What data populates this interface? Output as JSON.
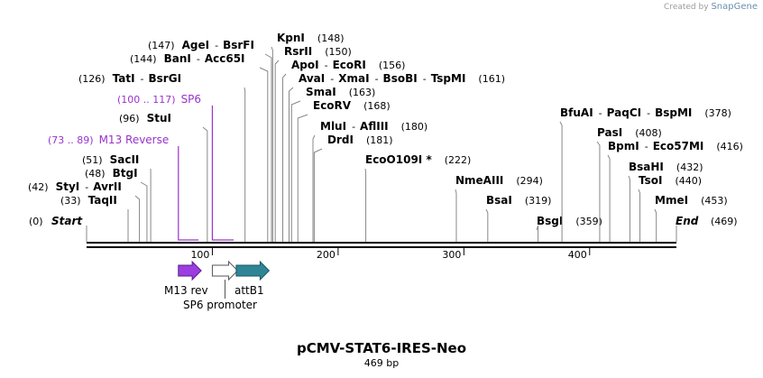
{
  "credit": {
    "prefix": "Created by",
    "brand": "SnapGene"
  },
  "plasmid": {
    "name": "pCMV-STAT6-IRES-Neo",
    "length_label": "469 bp",
    "length": 469
  },
  "colors": {
    "primer": "#9933cc",
    "m13": "#9b3de0",
    "attb1": "#2f8596",
    "line": "#888888",
    "axis": "#000000"
  },
  "ends": [
    {
      "id": "start",
      "pos": 0,
      "label": "Start",
      "num": "(0)"
    },
    {
      "id": "end",
      "pos": 469,
      "label": "End",
      "num": "(469)"
    }
  ],
  "sites": [
    {
      "id": "taqii",
      "pos": 33,
      "num": "(33)",
      "names": [
        "TaqII"
      ],
      "side": "left"
    },
    {
      "id": "styi",
      "pos": 42,
      "num": "(42)",
      "names": [
        "StyI",
        "AvrII"
      ],
      "side": "left"
    },
    {
      "id": "btgi",
      "pos": 48,
      "num": "(48)",
      "names": [
        "BtgI"
      ],
      "side": "left"
    },
    {
      "id": "sacii",
      "pos": 51,
      "num": "(51)",
      "names": [
        "SacII"
      ],
      "side": "left"
    },
    {
      "id": "stui",
      "pos": 96,
      "num": "(96)",
      "names": [
        "StuI"
      ],
      "side": "left"
    },
    {
      "id": "tati",
      "pos": 126,
      "num": "(126)",
      "names": [
        "TatI",
        "BsrGI"
      ],
      "side": "left"
    },
    {
      "id": "bani",
      "pos": 144,
      "num": "(144)",
      "names": [
        "BanI",
        "Acc65I"
      ],
      "side": "left"
    },
    {
      "id": "agei",
      "pos": 147,
      "num": "(147)",
      "names": [
        "AgeI",
        "BsrFI"
      ],
      "side": "left"
    },
    {
      "id": "kpni",
      "pos": 148,
      "num": "(148)",
      "names": [
        "KpnI"
      ],
      "side": "right"
    },
    {
      "id": "rsrii",
      "pos": 150,
      "num": "(150)",
      "names": [
        "RsrII"
      ],
      "side": "right"
    },
    {
      "id": "apoi",
      "pos": 156,
      "num": "(156)",
      "names": [
        "ApoI",
        "EcoRI"
      ],
      "side": "right"
    },
    {
      "id": "avai",
      "pos": 161,
      "num": "(161)",
      "names": [
        "AvaI",
        "XmaI",
        "BsoBI",
        "TspMI"
      ],
      "side": "right"
    },
    {
      "id": "smai",
      "pos": 163,
      "num": "(163)",
      "names": [
        "SmaI"
      ],
      "side": "right"
    },
    {
      "id": "ecorv",
      "pos": 168,
      "num": "(168)",
      "names": [
        "EcoRV"
      ],
      "side": "right"
    },
    {
      "id": "mlui",
      "pos": 180,
      "num": "(180)",
      "names": [
        "MluI",
        "AflIII"
      ],
      "side": "right"
    },
    {
      "id": "drdi",
      "pos": 181,
      "num": "(181)",
      "names": [
        "DrdI"
      ],
      "side": "right"
    },
    {
      "id": "eco0109i",
      "pos": 222,
      "num": "(222)",
      "names": [
        "EcoO109I *"
      ],
      "side": "right"
    },
    {
      "id": "nmeaiii",
      "pos": 294,
      "num": "(294)",
      "names": [
        "NmeAIII"
      ],
      "side": "right"
    },
    {
      "id": "bsai",
      "pos": 319,
      "num": "(319)",
      "names": [
        "BsaI"
      ],
      "side": "right"
    },
    {
      "id": "bsgi",
      "pos": 359,
      "num": "(359)",
      "names": [
        "BsgI"
      ],
      "side": "right"
    },
    {
      "id": "bfuai",
      "pos": 378,
      "num": "(378)",
      "names": [
        "BfuAI",
        "PaqCI",
        "BspMI"
      ],
      "side": "right"
    },
    {
      "id": "pasi",
      "pos": 408,
      "num": "(408)",
      "names": [
        "PasI"
      ],
      "side": "right"
    },
    {
      "id": "bpmi",
      "pos": 416,
      "num": "(416)",
      "names": [
        "BpmI",
        "Eco57MI"
      ],
      "side": "right"
    },
    {
      "id": "bsahi",
      "pos": 432,
      "num": "(432)",
      "names": [
        "BsaHI"
      ],
      "side": "right"
    },
    {
      "id": "tsoi",
      "pos": 440,
      "num": "(440)",
      "names": [
        "TsoI"
      ],
      "side": "right"
    },
    {
      "id": "mmei",
      "pos": 453,
      "num": "(453)",
      "names": [
        "MmeI"
      ],
      "side": "right"
    }
  ],
  "primers": [
    {
      "id": "m13-reverse",
      "start": 73,
      "end": 89,
      "range": "(73 .. 89)",
      "label": "M13 Reverse"
    },
    {
      "id": "sp6",
      "start": 100,
      "end": 117,
      "range": "(100 .. 117)",
      "label": "SP6"
    }
  ],
  "axis": {
    "ticks": [
      100,
      200,
      300,
      400
    ]
  },
  "features": [
    {
      "id": "m13-rev",
      "start": 73,
      "end": 89,
      "label": "M13 rev",
      "style": "filled-purple"
    },
    {
      "id": "sp6-promoter",
      "start": 100,
      "end": 118,
      "label": "SP6 promoter",
      "style": "outline"
    },
    {
      "id": "attb1",
      "start": 119,
      "end": 143,
      "label": "attB1",
      "style": "filled-teal"
    }
  ]
}
